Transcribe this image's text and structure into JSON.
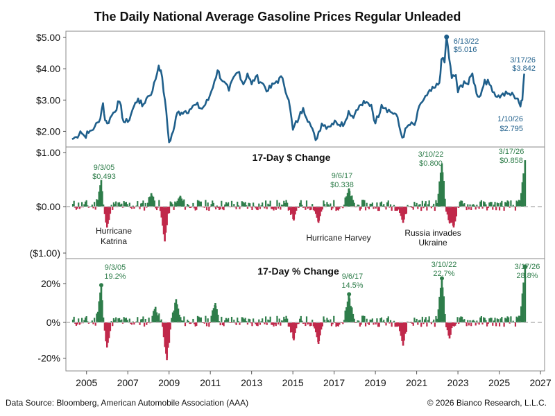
{
  "title": "The Daily National Average Gasoline Prices Regular Unleaded",
  "footer": {
    "source": "Data Source: Bloomberg, American Automobile Association (AAA)",
    "copyright": "© 2026 Bianco Research, L.L.C."
  },
  "colors": {
    "price_line": "#1f5f8b",
    "up": "#2e7d4a",
    "down": "#c0284a",
    "zero_line": "#b5b5b5",
    "panel_border": "#888888"
  },
  "chart_data": [
    {
      "type": "line",
      "panel": "price",
      "title": "",
      "ylim": [
        1.5,
        5.2
      ],
      "yticks": [
        {
          "v": 5,
          "label": "$5.00"
        },
        {
          "v": 4,
          "label": "$4.00"
        },
        {
          "v": 3,
          "label": "$3.00"
        },
        {
          "v": 2,
          "label": "$2.00"
        }
      ],
      "points": [
        [
          2004.3,
          1.75
        ],
        [
          2004.5,
          1.82
        ],
        [
          2004.7,
          2.0
        ],
        [
          2004.9,
          1.85
        ],
        [
          2005.1,
          1.95
        ],
        [
          2005.4,
          2.15
        ],
        [
          2005.6,
          2.3
        ],
        [
          2005.8,
          2.9
        ],
        [
          2005.9,
          2.35
        ],
        [
          2006.0,
          2.25
        ],
        [
          2006.3,
          2.6
        ],
        [
          2006.6,
          2.95
        ],
        [
          2006.8,
          2.3
        ],
        [
          2007.0,
          2.3
        ],
        [
          2007.3,
          2.8
        ],
        [
          2007.5,
          3.05
        ],
        [
          2007.7,
          2.8
        ],
        [
          2007.9,
          3.05
        ],
        [
          2008.2,
          3.3
        ],
        [
          2008.5,
          4.1
        ],
        [
          2008.6,
          3.95
        ],
        [
          2008.8,
          3.0
        ],
        [
          2009.0,
          1.65
        ],
        [
          2009.2,
          2.0
        ],
        [
          2009.4,
          2.6
        ],
        [
          2009.6,
          2.6
        ],
        [
          2009.8,
          2.65
        ],
        [
          2010.0,
          2.7
        ],
        [
          2010.3,
          2.85
        ],
        [
          2010.6,
          2.72
        ],
        [
          2010.9,
          3.0
        ],
        [
          2011.2,
          3.6
        ],
        [
          2011.35,
          3.95
        ],
        [
          2011.6,
          3.6
        ],
        [
          2011.9,
          3.3
        ],
        [
          2012.2,
          3.8
        ],
        [
          2012.4,
          3.9
        ],
        [
          2012.6,
          3.5
        ],
        [
          2012.8,
          3.85
        ],
        [
          2013.0,
          3.5
        ],
        [
          2013.2,
          3.75
        ],
        [
          2013.5,
          3.55
        ],
        [
          2013.8,
          3.3
        ],
        [
          2014.2,
          3.6
        ],
        [
          2014.5,
          3.7
        ],
        [
          2014.8,
          3.0
        ],
        [
          2015.0,
          2.05
        ],
        [
          2015.3,
          2.45
        ],
        [
          2015.5,
          2.75
        ],
        [
          2015.8,
          2.3
        ],
        [
          2016.1,
          1.72
        ],
        [
          2016.4,
          2.25
        ],
        [
          2016.7,
          2.15
        ],
        [
          2016.9,
          2.25
        ],
        [
          2017.1,
          2.3
        ],
        [
          2017.5,
          2.25
        ],
        [
          2017.7,
          2.65
        ],
        [
          2017.8,
          2.5
        ],
        [
          2018.0,
          2.55
        ],
        [
          2018.3,
          2.85
        ],
        [
          2018.5,
          2.9
        ],
        [
          2018.8,
          2.85
        ],
        [
          2019.0,
          2.25
        ],
        [
          2019.3,
          2.85
        ],
        [
          2019.5,
          2.75
        ],
        [
          2019.8,
          2.6
        ],
        [
          2020.0,
          2.55
        ],
        [
          2020.3,
          1.8
        ],
        [
          2020.6,
          2.2
        ],
        [
          2020.9,
          2.2
        ],
        [
          2021.2,
          2.9
        ],
        [
          2021.5,
          3.15
        ],
        [
          2021.9,
          3.4
        ],
        [
          2022.1,
          3.55
        ],
        [
          2022.2,
          4.3
        ],
        [
          2022.35,
          4.2
        ],
        [
          2022.45,
          5.016
        ],
        [
          2022.7,
          3.7
        ],
        [
          2022.9,
          3.8
        ],
        [
          2023.0,
          3.25
        ],
        [
          2023.3,
          3.6
        ],
        [
          2023.5,
          3.5
        ],
        [
          2023.7,
          3.85
        ],
        [
          2023.9,
          3.2
        ],
        [
          2024.1,
          3.15
        ],
        [
          2024.3,
          3.65
        ],
        [
          2024.6,
          3.45
        ],
        [
          2024.9,
          3.1
        ],
        [
          2025.1,
          3.15
        ],
        [
          2025.4,
          3.2
        ],
        [
          2025.7,
          3.15
        ],
        [
          2025.9,
          3.05
        ],
        [
          2026.03,
          2.795
        ],
        [
          2026.12,
          3.0
        ],
        [
          2026.21,
          3.842
        ]
      ],
      "annotations": [
        {
          "x": 2022.45,
          "y": 5.016,
          "date": "6/13/22",
          "value": "$5.016"
        },
        {
          "x": 2026.21,
          "y": 3.842,
          "date": "3/17/26",
          "value": "$3.842"
        },
        {
          "x": 2026.03,
          "y": 2.795,
          "date": "1/10/26",
          "value": "$2.795"
        }
      ]
    },
    {
      "type": "bar",
      "panel": "dollar_change",
      "title": "17-Day $ Change",
      "ylim": [
        -1.0,
        1.0
      ],
      "yticks": [
        {
          "v": 1,
          "label": "$1.00"
        },
        {
          "v": 0,
          "label": "$0.00"
        },
        {
          "v": -1,
          "label": "($1.00)"
        }
      ],
      "spikes": [
        [
          2005.67,
          0.493
        ],
        [
          2005.95,
          -0.45
        ],
        [
          2008.1,
          0.25
        ],
        [
          2008.75,
          -0.75
        ],
        [
          2009.5,
          0.2
        ],
        [
          2015.0,
          -0.3
        ],
        [
          2016.2,
          -0.35
        ],
        [
          2017.68,
          0.338
        ],
        [
          2020.3,
          -0.35
        ],
        [
          2022.18,
          0.8
        ],
        [
          2022.55,
          -0.35
        ],
        [
          2022.75,
          -0.45
        ],
        [
          2026.21,
          0.858
        ]
      ],
      "annotations": [
        {
          "x": 2005.67,
          "y": 0.493,
          "date": "9/3/05",
          "value": "$0.493"
        },
        {
          "x": 2017.68,
          "y": 0.338,
          "date": "9/6/17",
          "value": "$0.338"
        },
        {
          "x": 2022.18,
          "y": 0.8,
          "date": "3/10/22",
          "value": "$0.800"
        },
        {
          "x": 2026.21,
          "y": 0.858,
          "date": "3/17/26",
          "value": "$0.858"
        }
      ],
      "notes": [
        {
          "x": 2005.8,
          "text": "Hurricane"
        },
        {
          "x": 2005.8,
          "text": "Katrina"
        },
        {
          "x": 2017.75,
          "text": "Hurricane Harvey"
        },
        {
          "x": 2022.1,
          "text": "Russia invades"
        },
        {
          "x": 2022.1,
          "text": "Ukraine"
        }
      ]
    },
    {
      "type": "bar",
      "panel": "percent_change",
      "title": "17-Day % Change",
      "ylim": [
        -24,
        30
      ],
      "yticks": [
        {
          "v": 20,
          "label": "20%"
        },
        {
          "v": 0,
          "label": "0%"
        },
        {
          "v": -20,
          "label": "-20%"
        }
      ],
      "spikes": [
        [
          2005.67,
          19.2
        ],
        [
          2005.95,
          -14
        ],
        [
          2008.3,
          8
        ],
        [
          2008.85,
          -21
        ],
        [
          2009.3,
          12
        ],
        [
          2011.2,
          10
        ],
        [
          2015.0,
          -10
        ],
        [
          2016.2,
          -12
        ],
        [
          2017.68,
          14.5
        ],
        [
          2020.3,
          -13
        ],
        [
          2022.18,
          22.7
        ],
        [
          2022.55,
          -9
        ],
        [
          2026.21,
          28.8
        ]
      ],
      "annotations": [
        {
          "x": 2005.67,
          "y": 19.2,
          "date": "9/3/05",
          "value": "19.2%"
        },
        {
          "x": 2017.68,
          "y": 14.5,
          "date": "9/6/17",
          "value": "14.5%"
        },
        {
          "x": 2022.18,
          "y": 22.7,
          "date": "3/10/22",
          "value": "22.7%"
        },
        {
          "x": 2026.21,
          "y": 28.8,
          "date": "3/17/26",
          "value": "28.8%"
        }
      ]
    }
  ],
  "x_axis": {
    "range": [
      2004.0,
      2027.2
    ],
    "ticks": [
      "2005",
      "2007",
      "2009",
      "2011",
      "2013",
      "2015",
      "2017",
      "2019",
      "2021",
      "2023",
      "2025",
      "2027"
    ]
  }
}
